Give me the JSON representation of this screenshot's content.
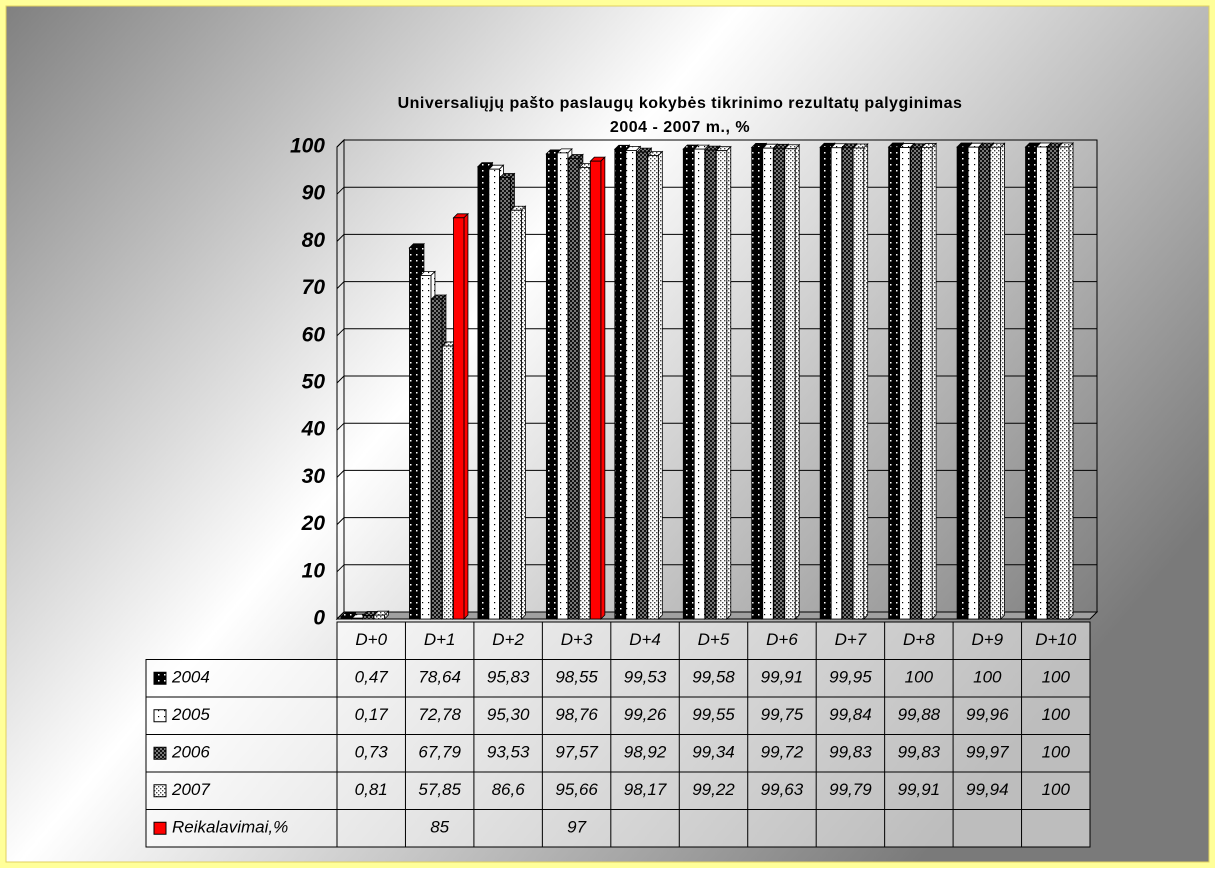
{
  "chart_data": {
    "type": "bar",
    "title": "Universaliųjų pašto paslaugų kokybės tikrinimo rezultatų palyginimas",
    "subtitle": "2004 - 2007 m., %",
    "categories": [
      "D+0",
      "D+1",
      "D+2",
      "D+3",
      "D+4",
      "D+5",
      "D+6",
      "D+7",
      "D+8",
      "D+9",
      "D+10"
    ],
    "series": [
      {
        "name": "2004",
        "color": "#000000",
        "values": [
          0.47,
          78.64,
          95.83,
          98.55,
          99.53,
          99.58,
          99.91,
          99.95,
          100,
          100,
          100
        ],
        "value_labels": [
          "0,47",
          "78,64",
          "95,83",
          "98,55",
          "99,53",
          "99,58",
          "99,91",
          "99,95",
          "100",
          "100",
          "100"
        ]
      },
      {
        "name": "2005",
        "color": "#ffffff",
        "values": [
          0.17,
          72.78,
          95.3,
          98.76,
          99.26,
          99.55,
          99.75,
          99.84,
          99.88,
          99.96,
          100
        ],
        "value_labels": [
          "0,17",
          "72,78",
          "95,30",
          "98,76",
          "99,26",
          "99,55",
          "99,75",
          "99,84",
          "99,88",
          "99,96",
          "100"
        ]
      },
      {
        "name": "2006",
        "color": "#333333",
        "values": [
          0.73,
          67.79,
          93.53,
          97.57,
          98.92,
          99.34,
          99.72,
          99.83,
          99.83,
          99.97,
          100
        ],
        "value_labels": [
          "0,73",
          "67,79",
          "93,53",
          "97,57",
          "98,92",
          "99,34",
          "99,72",
          "99,83",
          "99,83",
          "99,97",
          "100"
        ]
      },
      {
        "name": "2007",
        "color": "#dddddd",
        "values": [
          0.81,
          57.85,
          86.6,
          95.66,
          98.17,
          99.22,
          99.63,
          99.79,
          99.91,
          99.94,
          100
        ],
        "value_labels": [
          "0,81",
          "57,85",
          "86,6",
          "95,66",
          "98,17",
          "99,22",
          "99,63",
          "99,79",
          "99,91",
          "99,94",
          "100"
        ]
      },
      {
        "name": "Reikalavimai,%",
        "color": "#ff0000",
        "values": [
          null,
          85,
          null,
          97,
          null,
          null,
          null,
          null,
          null,
          null,
          null
        ]
      }
    ],
    "ylim": [
      0,
      100
    ],
    "yticks": [
      0,
      10,
      20,
      30,
      40,
      50,
      60,
      70,
      80,
      90,
      100
    ],
    "grid": true
  }
}
